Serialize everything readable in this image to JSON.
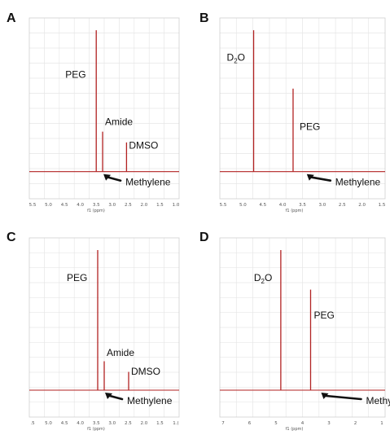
{
  "chart_data": [
    {
      "type": "line",
      "panel_label": "A",
      "xlabel": "f1 (ppm)",
      "xlim": [
        5.6,
        0.9
      ],
      "ticks": [
        "5.5",
        "5.0",
        "4.5",
        "4.0",
        "3.5",
        "3.0",
        "2.5",
        "2.0",
        "1.5",
        "1.0"
      ],
      "peaks": [
        {
          "x": 3.5,
          "height": 0.92
        },
        {
          "x": 3.3,
          "height": 0.26
        },
        {
          "x": 2.55,
          "height": 0.19
        }
      ],
      "annotations": [
        {
          "text": "PEG",
          "x": 3.5
        },
        {
          "text": "Amide",
          "x": 3.3
        },
        {
          "text": "DMSO",
          "x": 2.55
        },
        {
          "text": "Methylene",
          "x": 3.35
        }
      ]
    },
    {
      "type": "line",
      "panel_label": "B",
      "xlabel": "f1 (ppm)",
      "xlim": [
        5.6,
        1.2
      ],
      "ticks": [
        "5.5",
        "5.0",
        "4.5",
        "4.0",
        "3.5",
        "3.0",
        "2.5",
        "2.0",
        "1.5"
      ],
      "peaks": [
        {
          "x": 4.7,
          "height": 0.92
        },
        {
          "x": 3.65,
          "height": 0.54
        }
      ],
      "annotations": [
        {
          "text": "D",
          "sub": "2",
          "tail": "O",
          "x": 4.7
        },
        {
          "text": "PEG",
          "x": 3.65
        },
        {
          "text": "Methylene",
          "x": 3.35
        }
      ]
    },
    {
      "type": "line",
      "panel_label": "C",
      "xlabel": "f1 (ppm)",
      "xlim": [
        5.6,
        1.0
      ],
      "ticks": [
        ".5",
        "5.0",
        "4.5",
        "4.0",
        "3.5",
        "3.0",
        "2.5",
        "2.0",
        "1.5",
        "1.("
      ],
      "peaks": [
        {
          "x": 3.5,
          "height": 0.92
        },
        {
          "x": 3.3,
          "height": 0.19
        },
        {
          "x": 2.55,
          "height": 0.12
        }
      ],
      "annotations": [
        {
          "text": "PEG",
          "x": 3.5
        },
        {
          "text": "Amide",
          "x": 3.3
        },
        {
          "text": "DMSO",
          "x": 2.55
        },
        {
          "text": "Methylene",
          "x": 3.35
        }
      ]
    },
    {
      "type": "line",
      "panel_label": "D",
      "xlabel": "f1 (ppm)",
      "xlim": [
        7.0,
        0.9
      ],
      "ticks": [
        "7",
        "6",
        "5",
        "4",
        "3",
        "2",
        "1"
      ],
      "peaks": [
        {
          "x": 4.75,
          "height": 0.92
        },
        {
          "x": 3.65,
          "height": 0.66
        }
      ],
      "annotations": [
        {
          "text": "D",
          "sub": "2",
          "tail": "O",
          "x": 4.75
        },
        {
          "text": "PEG",
          "x": 3.65
        },
        {
          "text": "Methylene",
          "x": 3.35
        }
      ]
    }
  ]
}
